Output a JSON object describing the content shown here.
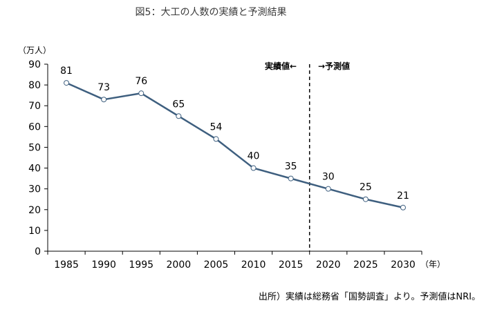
{
  "chart_data": {
    "type": "line",
    "title": "図5：大工の人数の実績と予測結果",
    "ylabel": "（万人）",
    "xlabel": "（年）",
    "x": [
      1985,
      1990,
      1995,
      2000,
      2005,
      2010,
      2015,
      2020,
      2025,
      2030
    ],
    "values": [
      81,
      73,
      76,
      65,
      54,
      40,
      35,
      30,
      25,
      21
    ],
    "ylim": [
      0,
      90
    ],
    "yticks": [
      0,
      10,
      20,
      30,
      40,
      50,
      60,
      70,
      80,
      90
    ],
    "grid": false,
    "annotations": {
      "actual": "実績値←",
      "forecast": "→予測値",
      "divider_between": [
        2015,
        2020
      ]
    },
    "source": "出所）実績は総務省「国勢調査」より。予測値はNRI。",
    "colors": {
      "line": "#3e5f7f",
      "marker_fill": "#ffffff",
      "axis": "#000000",
      "divider": "#000000"
    }
  }
}
